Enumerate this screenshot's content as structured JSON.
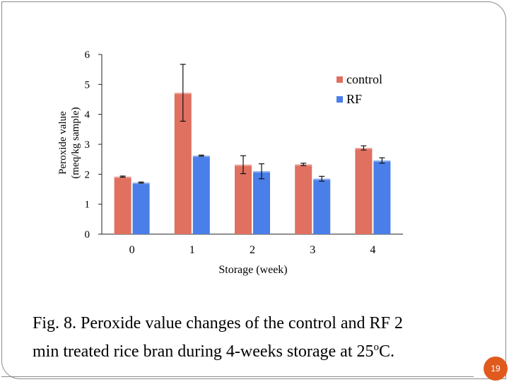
{
  "chart_data": {
    "type": "bar",
    "title": "",
    "xlabel": "Storage (week)",
    "ylabel_lines": [
      "Peroxide value",
      "(meq/kg sample)"
    ],
    "categories": [
      "0",
      "1",
      "2",
      "3",
      "4"
    ],
    "ylim": [
      0,
      6
    ],
    "yticks": [
      "0",
      "1",
      "2",
      "3",
      "4",
      "5",
      "6"
    ],
    "legend_position": "top-right",
    "series": [
      {
        "name": "control",
        "color": "#e07060",
        "values": [
          1.92,
          4.72,
          2.32,
          2.33,
          2.88
        ],
        "errors": [
          0.02,
          0.95,
          0.3,
          0.04,
          0.07
        ]
      },
      {
        "name": "RF",
        "color": "#4a7ee8",
        "values": [
          1.72,
          2.62,
          2.1,
          1.85,
          2.46
        ],
        "errors": [
          0.02,
          0.02,
          0.25,
          0.08,
          0.09
        ]
      }
    ]
  },
  "caption": {
    "line1": "Fig. 8. Peroxide value changes of the control and RF 2",
    "line2_pre": "min treated rice bran during 4-weeks storage at 25",
    "line2_sup": "o",
    "line2_post": "C."
  },
  "page_number": "19",
  "colors": {
    "frame": "#8c8c8c",
    "badge": "#e05a1e"
  }
}
